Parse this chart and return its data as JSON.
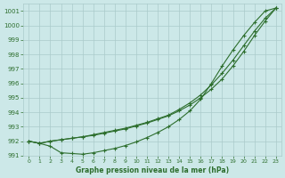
{
  "x": [
    0,
    1,
    2,
    3,
    4,
    5,
    6,
    7,
    8,
    9,
    10,
    11,
    12,
    13,
    14,
    15,
    16,
    17,
    18,
    19,
    20,
    21,
    22,
    23
  ],
  "line1": [
    992.0,
    991.85,
    992.0,
    992.1,
    992.2,
    992.3,
    992.4,
    992.55,
    992.7,
    992.85,
    993.05,
    993.25,
    993.5,
    993.75,
    994.1,
    994.5,
    995.0,
    995.6,
    996.3,
    997.2,
    998.2,
    999.3,
    1000.3,
    1001.2
  ],
  "line2": [
    992.0,
    991.85,
    992.0,
    992.1,
    992.2,
    992.3,
    992.45,
    992.6,
    992.75,
    992.9,
    993.1,
    993.3,
    993.55,
    993.8,
    994.2,
    994.65,
    995.2,
    995.9,
    996.7,
    997.6,
    998.6,
    999.6,
    1000.5,
    1001.2
  ],
  "line3": [
    992.0,
    991.85,
    991.65,
    991.2,
    991.15,
    991.1,
    991.2,
    991.35,
    991.5,
    991.7,
    991.95,
    992.25,
    992.6,
    993.0,
    993.5,
    994.1,
    994.9,
    996.0,
    997.2,
    998.3,
    999.3,
    1000.2,
    1001.0,
    1001.2
  ],
  "background_color": "#cce8e8",
  "grid_color": "#aacaca",
  "line_color": "#2d6e2d",
  "xlabel": "Graphe pression niveau de la mer (hPa)",
  "ylim": [
    991.0,
    1001.5
  ],
  "yticks": [
    991,
    992,
    993,
    994,
    995,
    996,
    997,
    998,
    999,
    1000,
    1001
  ],
  "xticks": [
    0,
    1,
    2,
    3,
    4,
    5,
    6,
    7,
    8,
    9,
    10,
    11,
    12,
    13,
    14,
    15,
    16,
    17,
    18,
    19,
    20,
    21,
    22,
    23
  ]
}
